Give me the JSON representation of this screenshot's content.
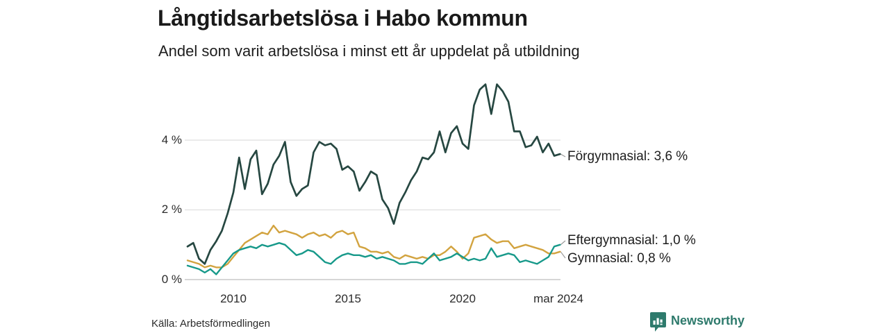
{
  "title": "Långtidsarbetslösa i Habo kommun",
  "subtitle": "Andel som varit arbetslösa i minst ett år uppdelat på utbildning",
  "source": "Källa: Arbetsförmedlingen",
  "branding": {
    "name": "Newsworthy",
    "color": "#2e7a6c",
    "icon": "speech-bubble-bar-chart"
  },
  "chart_data": {
    "type": "line",
    "title": "Långtidsarbetslösa i Habo kommun",
    "subtitle": "Andel som varit arbetslösa i minst ett år uppdelat på utbildning",
    "x_unit": "decimal_year",
    "xlim": [
      2008.0,
      2024.25
    ],
    "ylim": [
      0,
      6
    ],
    "grid": "horizontal",
    "legend_position": "end-labels-right",
    "y_ticks": [
      {
        "value": 4,
        "label": "4 %"
      },
      {
        "value": 2,
        "label": "2 %"
      },
      {
        "value": 0,
        "label": "0 %"
      }
    ],
    "x_ticks": [
      {
        "value": 2010,
        "label": "2010"
      },
      {
        "value": 2015,
        "label": "2015"
      },
      {
        "value": 2020,
        "label": "2020"
      },
      {
        "value": 2024.17,
        "label": "mar 2024"
      }
    ],
    "style": {
      "grid_color": "#e4e4e4",
      "zero_line_color": "#c9c9c9",
      "leader_color": "#9a9a9a"
    },
    "x": [
      2008.0,
      2008.25,
      2008.5,
      2008.75,
      2009.0,
      2009.25,
      2009.5,
      2009.75,
      2010.0,
      2010.25,
      2010.5,
      2010.75,
      2011.0,
      2011.25,
      2011.5,
      2011.75,
      2012.0,
      2012.25,
      2012.5,
      2012.75,
      2013.0,
      2013.25,
      2013.5,
      2013.75,
      2014.0,
      2014.25,
      2014.5,
      2014.75,
      2015.0,
      2015.25,
      2015.5,
      2015.75,
      2016.0,
      2016.25,
      2016.5,
      2016.75,
      2017.0,
      2017.25,
      2017.5,
      2017.75,
      2018.0,
      2018.25,
      2018.5,
      2018.75,
      2019.0,
      2019.25,
      2019.5,
      2019.75,
      2020.0,
      2020.25,
      2020.5,
      2020.75,
      2021.0,
      2021.25,
      2021.5,
      2021.75,
      2022.0,
      2022.25,
      2022.5,
      2022.75,
      2023.0,
      2023.25,
      2023.5,
      2023.75,
      2024.0,
      2024.25
    ],
    "series": [
      {
        "name": "Förgymnasial",
        "end_label": "Förgymnasial: 3,6 %",
        "end_value_text": "3,6 %",
        "color": "#264741",
        "values": [
          0.95,
          1.05,
          0.6,
          0.45,
          0.85,
          1.1,
          1.4,
          1.9,
          2.5,
          3.5,
          2.6,
          3.45,
          3.7,
          2.45,
          2.75,
          3.3,
          3.55,
          3.95,
          2.8,
          2.4,
          2.6,
          2.7,
          3.65,
          3.95,
          3.85,
          3.9,
          3.75,
          3.15,
          3.25,
          3.1,
          2.55,
          2.8,
          3.1,
          3.0,
          2.3,
          2.05,
          1.6,
          2.2,
          2.5,
          2.85,
          3.1,
          3.5,
          3.45,
          3.65,
          4.25,
          3.65,
          4.2,
          4.4,
          3.9,
          3.75,
          5.0,
          5.45,
          5.6,
          4.75,
          5.6,
          5.4,
          5.1,
          4.25,
          4.25,
          3.8,
          3.85,
          4.1,
          3.65,
          3.9,
          3.55,
          3.6
        ]
      },
      {
        "name": "Eftergymnasial",
        "end_label": "Eftergymnasial: 1,0 %",
        "end_value_text": "1,0 %",
        "color": "#17998a",
        "values": [
          0.4,
          0.35,
          0.3,
          0.2,
          0.3,
          0.15,
          0.35,
          0.55,
          0.75,
          0.85,
          0.9,
          0.95,
          0.9,
          1.0,
          0.95,
          1.0,
          1.05,
          1.0,
          0.85,
          0.7,
          0.75,
          0.85,
          0.8,
          0.65,
          0.5,
          0.45,
          0.6,
          0.7,
          0.75,
          0.7,
          0.7,
          0.65,
          0.7,
          0.6,
          0.65,
          0.6,
          0.55,
          0.45,
          0.45,
          0.5,
          0.5,
          0.45,
          0.6,
          0.75,
          0.55,
          0.6,
          0.65,
          0.75,
          0.65,
          0.55,
          0.6,
          0.55,
          0.6,
          0.9,
          0.65,
          0.7,
          0.75,
          0.7,
          0.5,
          0.55,
          0.5,
          0.45,
          0.55,
          0.65,
          0.95,
          1.0
        ]
      },
      {
        "name": "Gymnasial",
        "end_label": "Gymnasial: 0,8 %",
        "end_value_text": "0,8 %",
        "color": "#d2a33f",
        "values": [
          0.55,
          0.5,
          0.45,
          0.35,
          0.4,
          0.35,
          0.35,
          0.45,
          0.65,
          0.85,
          1.05,
          1.15,
          1.25,
          1.35,
          1.3,
          1.55,
          1.35,
          1.4,
          1.35,
          1.3,
          1.2,
          1.3,
          1.35,
          1.25,
          1.3,
          1.2,
          1.35,
          1.4,
          1.3,
          1.35,
          0.95,
          0.9,
          0.8,
          0.8,
          0.75,
          0.8,
          0.65,
          0.6,
          0.7,
          0.65,
          0.6,
          0.65,
          0.6,
          0.7,
          0.7,
          0.8,
          0.95,
          0.8,
          0.6,
          0.75,
          1.2,
          1.25,
          1.3,
          1.15,
          1.05,
          1.1,
          1.1,
          0.9,
          0.95,
          1.0,
          0.95,
          0.9,
          0.85,
          0.75,
          0.75,
          0.8
        ]
      }
    ]
  }
}
